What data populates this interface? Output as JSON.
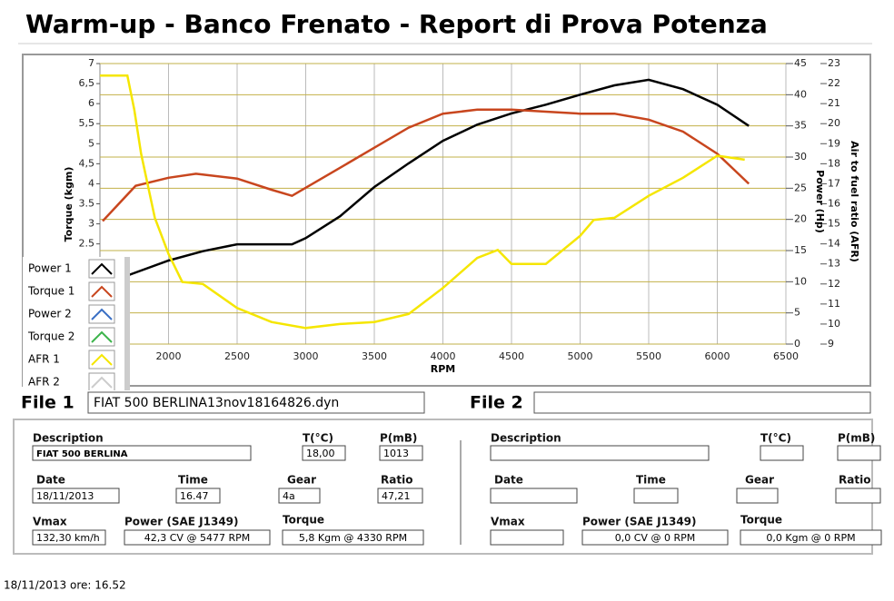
{
  "title": "Warm-up  - Banco Frenato -  Report di Prova Potenza",
  "chart_data": {
    "type": "line",
    "xlabel": "RPM",
    "ylabel": "Torque (kgm)",
    "y2label": "Power (Hp)",
    "y3label": "Air to fuel ratio (AFR)",
    "xlim": [
      1500,
      6500
    ],
    "xticks": [
      2000,
      2500,
      3000,
      3500,
      4000,
      4500,
      5000,
      5500,
      6000,
      6500
    ],
    "ylim": [
      0,
      7
    ],
    "yticks": [
      2.5,
      3,
      3.5,
      4,
      {
        "value": 4.5,
        "label": "4,5"
      },
      5,
      {
        "value": 5.5,
        "label": "5,5"
      },
      6,
      {
        "value": 6.5,
        "label": "6,5"
      },
      7
    ],
    "y2lim": [
      0,
      45
    ],
    "y2ticks": [
      0,
      5,
      10,
      15,
      20,
      25,
      30,
      35,
      40,
      45
    ],
    "y3lim": [
      9,
      23
    ],
    "y3ticks": [
      9,
      10,
      11,
      12,
      13,
      14,
      15,
      16,
      17,
      18,
      19,
      20,
      21,
      22,
      23
    ],
    "grid": true,
    "series": [
      {
        "name": "Power 1",
        "color": "#000000",
        "axis": "y2",
        "x": [
          1700,
          2000,
          2250,
          2500,
          2750,
          2900,
          3000,
          3250,
          3500,
          3750,
          4000,
          4250,
          4500,
          4750,
          5000,
          5250,
          5500,
          5750,
          6000,
          6230
        ],
        "values": [
          11,
          13.4,
          14.9,
          16,
          16,
          16,
          17,
          20.5,
          25.2,
          29,
          32.6,
          35.2,
          37,
          38.4,
          40,
          41.5,
          42.4,
          40.9,
          38.4,
          35
        ]
      },
      {
        "name": "Torque 1",
        "color": "#c8461e",
        "axis": "y",
        "x": [
          1520,
          1760,
          2000,
          2200,
          2500,
          2750,
          2900,
          3000,
          3250,
          3500,
          3750,
          4000,
          4250,
          4500,
          4750,
          5000,
          5250,
          5500,
          5750,
          6000,
          6230
        ],
        "values": [
          3.07,
          3.95,
          4.15,
          4.25,
          4.13,
          3.85,
          3.7,
          3.9,
          4.4,
          4.9,
          5.4,
          5.75,
          5.85,
          5.85,
          5.8,
          5.75,
          5.75,
          5.6,
          5.3,
          4.75,
          4.0
        ]
      },
      {
        "name": "Power 2",
        "color": "#3a6fc4",
        "axis": "y2",
        "x": [],
        "values": []
      },
      {
        "name": "Torque 2",
        "color": "#3cb44b",
        "axis": "y",
        "x": [],
        "values": []
      },
      {
        "name": "AFR 1",
        "color": "#f5e600",
        "axis": "y3",
        "x": [
          1500,
          1700,
          1750,
          1800,
          1900,
          2000,
          2100,
          2250,
          2500,
          2750,
          3000,
          3250,
          3500,
          3750,
          4000,
          4250,
          4400,
          4500,
          4750,
          5000,
          5100,
          5250,
          5500,
          5750,
          6000,
          6200
        ],
        "values": [
          22.4,
          22.4,
          20.7,
          18.5,
          15.3,
          13.5,
          12.1,
          12.0,
          10.8,
          10.1,
          9.8,
          10,
          10.1,
          10.5,
          11.8,
          13.3,
          13.7,
          13,
          13,
          14.4,
          15.2,
          15.3,
          16.4,
          17.3,
          18.4,
          18.2
        ]
      },
      {
        "name": "AFR 2",
        "color": "#cccccc",
        "axis": "y3",
        "x": [],
        "values": []
      }
    ]
  },
  "files": [
    {
      "label": "File 1",
      "filename": "FIAT 500 BERLINA13nov18164826.dyn",
      "fields": [
        {
          "label": "Description",
          "value": "FIAT 500 BERLINA"
        },
        {
          "label": "T(°C)",
          "value": "18,00"
        },
        {
          "label": "P(mB)",
          "value": "1013"
        },
        {
          "label": "Date",
          "value": "18/11/2013"
        },
        {
          "label": "Time",
          "value": "16.47"
        },
        {
          "label": "Gear",
          "value": "4a"
        },
        {
          "label": "Ratio",
          "value": "47,21"
        },
        {
          "label": "Vmax",
          "value": "132,30 km/h"
        },
        {
          "label": "Power (SAE J1349)",
          "value": "42,3 CV  @ 5477  RPM"
        },
        {
          "label": "Torque",
          "value": "5,8 Kgm  @ 4330  RPM"
        }
      ]
    },
    {
      "label": "File 2",
      "fields": [
        {
          "label": "Description"
        },
        {
          "label": "T(°C)"
        },
        {
          "label": "P(mB)"
        },
        {
          "label": "Date"
        },
        {
          "label": "Time"
        },
        {
          "label": "Gear"
        },
        {
          "label": "Ratio"
        },
        {
          "label": "Vmax"
        },
        {
          "label": "Power (SAE J1349)",
          "value": "0,0 CV  @ 0  RPM"
        },
        {
          "label": "Torque",
          "value": "0,0 Kgm  @ 0  RPM"
        }
      ]
    }
  ],
  "footer": "18/11/2013  ore: 16.52"
}
